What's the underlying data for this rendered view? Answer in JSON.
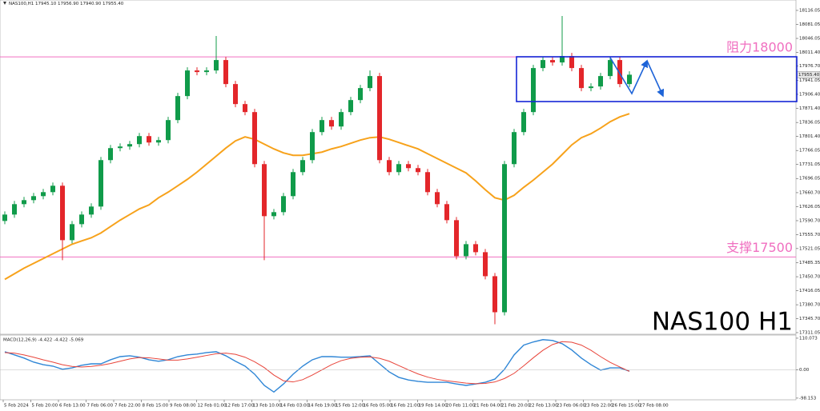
{
  "chart_data": [
    {
      "type": "candlestick",
      "title": "NAS100,H1 17945.10 17956.90 17940.90 17955.40",
      "watermark": "NAS100 H1",
      "up_color": "#109b4a",
      "down_color": "#e3262a",
      "open": [
        17590,
        17606,
        17632,
        17642,
        17652,
        17662,
        17678,
        17542,
        17582,
        17606,
        17626,
        17742,
        17772,
        17776,
        17782,
        17802,
        17786,
        17792,
        17842,
        17902,
        17966,
        17962,
        17966,
        17992,
        17932,
        17882,
        17862,
        17732,
        17602,
        17612,
        17652,
        17712,
        17742,
        17812,
        17842,
        17826,
        17862,
        17892,
        17922,
        17952,
        17742,
        17712,
        17732,
        17722,
        17712,
        17662,
        17632,
        17592,
        17502,
        17532,
        17512,
        17452,
        17362,
        17732,
        17812,
        17862,
        17972,
        17992,
        17986,
        18002,
        17972,
        17922,
        17926,
        17952,
        17992,
        17932
      ],
      "high": [
        17614,
        17640,
        17650,
        17660,
        17670,
        17686,
        17686,
        17590,
        17614,
        17634,
        17750,
        17780,
        17784,
        17790,
        17810,
        17810,
        17800,
        17850,
        17910,
        17974,
        17974,
        17974,
        18052,
        18000,
        17940,
        17890,
        17870,
        17740,
        17620,
        17660,
        17720,
        17750,
        17820,
        17850,
        17850,
        17870,
        17900,
        17930,
        17966,
        17960,
        17750,
        17740,
        17740,
        17730,
        17720,
        17670,
        17640,
        17600,
        17540,
        17540,
        17520,
        17460,
        17740,
        17820,
        17870,
        17980,
        18000,
        18000,
        18102,
        18010,
        17980,
        17934,
        17960,
        18000,
        18000,
        17964
      ],
      "low": [
        17582,
        17598,
        17624,
        17634,
        17644,
        17654,
        17492,
        17534,
        17574,
        17598,
        17618,
        17734,
        17764,
        17768,
        17774,
        17778,
        17778,
        17784,
        17834,
        17894,
        17954,
        17954,
        17958,
        17924,
        17874,
        17854,
        17724,
        17492,
        17594,
        17604,
        17644,
        17704,
        17734,
        17804,
        17818,
        17818,
        17854,
        17884,
        17914,
        17734,
        17704,
        17704,
        17714,
        17704,
        17654,
        17624,
        17584,
        17494,
        17494,
        17504,
        17444,
        17332,
        17354,
        17724,
        17804,
        17854,
        17964,
        17978,
        17978,
        17964,
        17914,
        17914,
        17918,
        17944,
        17924,
        17924
      ],
      "close": [
        17606,
        17632,
        17642,
        17652,
        17662,
        17678,
        17542,
        17582,
        17606,
        17626,
        17742,
        17772,
        17776,
        17782,
        17802,
        17786,
        17792,
        17842,
        17902,
        17966,
        17962,
        17966,
        17992,
        17932,
        17882,
        17862,
        17732,
        17602,
        17612,
        17652,
        17712,
        17742,
        17812,
        17842,
        17826,
        17862,
        17892,
        17922,
        17952,
        17742,
        17712,
        17732,
        17722,
        17712,
        17662,
        17632,
        17592,
        17502,
        17532,
        17512,
        17452,
        17362,
        17732,
        17812,
        17862,
        17972,
        17992,
        17986,
        18002,
        17972,
        17922,
        17926,
        17952,
        17992,
        17932,
        17955.4
      ],
      "ma": {
        "color": "#f7a21b",
        "values": [
          17444,
          17458,
          17472,
          17484,
          17496,
          17508,
          17520,
          17532,
          17540,
          17548,
          17560,
          17576,
          17592,
          17606,
          17620,
          17630,
          17648,
          17662,
          17678,
          17694,
          17712,
          17732,
          17752,
          17772,
          17790,
          17800,
          17794,
          17782,
          17770,
          17760,
          17754,
          17754,
          17758,
          17762,
          17770,
          17776,
          17784,
          17792,
          17798,
          17800,
          17794,
          17786,
          17778,
          17770,
          17758,
          17746,
          17734,
          17722,
          17710,
          17690,
          17668,
          17648,
          17642,
          17654,
          17674,
          17692,
          17712,
          17732,
          17756,
          17780,
          17798,
          17808,
          17822,
          17838,
          17850,
          17858
        ]
      },
      "levels": [
        {
          "value": 18000,
          "label": "阻力18000"
        },
        {
          "value": 17500,
          "label": "支撑17500"
        }
      ],
      "level_color": "#f06fc0",
      "price_tag": {
        "value": 17955.4,
        "label": "17955.40"
      },
      "ylim": [
        17307,
        18142
      ],
      "yticks": [
        18116.05,
        18081.05,
        18046.05,
        {
          "value": 18011.4,
          "label": "18011.40"
        },
        {
          "value": 17976.7,
          "label": "17976.70"
        },
        17941.05,
        {
          "value": 17906.4,
          "label": "17906.40"
        },
        {
          "value": 17871.4,
          "label": "17871.40"
        },
        17836.05,
        {
          "value": 17801.4,
          "label": "17801.40"
        },
        17766.05,
        17731.05,
        17696.05,
        {
          "value": 17660.7,
          "label": "17660.70"
        },
        17626.05,
        {
          "value": 17590.7,
          "label": "17590.70"
        },
        {
          "value": 17555.7,
          "label": "17555.70"
        },
        17521.05,
        17485.35,
        {
          "value": 17450.7,
          "label": "17450.70"
        },
        17416.05,
        {
          "value": 17380.7,
          "label": "17380.70"
        },
        {
          "value": 17345.7,
          "label": "17345.70"
        },
        17311.05
      ],
      "xtick_labels": [
        "5 Feb 2024",
        "5 Feb 20:00",
        "6 Feb 13:00",
        "7 Feb 06:00",
        "7 Feb 22:00",
        "8 Feb 15:00",
        "9 Feb 08:00",
        "12 Feb 01:00",
        "12 Feb 17:00",
        "13 Feb 10:00",
        "14 Feb 03:00",
        "14 Feb 19:00",
        "15 Feb 12:00",
        "16 Feb 05:00",
        "16 Feb 21:00",
        "19 Feb 14:00",
        "20 Feb 11:00",
        "21 Feb 04:00",
        "21 Feb 20:00",
        "22 Feb 13:00",
        "23 Feb 06:00",
        "23 Feb 22:00",
        "26 Feb 15:00",
        "27 Feb 08:00"
      ]
    },
    {
      "type": "line",
      "title": "MACD(12,26,9) -4.422 -4.422 -5.069",
      "series": [
        {
          "color": "#2f86d6",
          "values": [
            63,
            52,
            41,
            27,
            18,
            13,
            2,
            7,
            16,
            21,
            21,
            35,
            46,
            49,
            44,
            35,
            30,
            35,
            46,
            52,
            55,
            60,
            63,
            49,
            30,
            13,
            -15,
            -54,
            -77,
            -49,
            -15,
            13,
            35,
            46,
            46,
            44,
            44,
            46,
            49,
            21,
            -7,
            -26,
            -35,
            -40,
            -43,
            -43,
            -43,
            -49,
            -54,
            -49,
            -43,
            -32,
            2,
            52,
            86,
            97,
            105,
            102,
            91,
            69,
            41,
            18,
            -1,
            7,
            7,
            -4.422
          ]
        },
        {
          "color": "#e8443a",
          "values": [
            60,
            58,
            52,
            44,
            35,
            27,
            18,
            12,
            10,
            12,
            16,
            22,
            30,
            38,
            43,
            42,
            38,
            34,
            34,
            38,
            44,
            50,
            56,
            58,
            54,
            44,
            28,
            8,
            -18,
            -38,
            -42,
            -34,
            -18,
            0,
            18,
            32,
            40,
            44,
            45,
            40,
            30,
            15,
            0,
            -14,
            -25,
            -33,
            -38,
            -42,
            -46,
            -48,
            -47,
            -42,
            -30,
            -12,
            14,
            42,
            68,
            88,
            98,
            96,
            86,
            68,
            46,
            26,
            10,
            -5.069
          ]
        }
      ],
      "ylim": [
        -104,
        121
      ],
      "yticks": [
        110.073,
        {
          "value": 0,
          "label": "0.00"
        },
        -98.153
      ]
    }
  ]
}
